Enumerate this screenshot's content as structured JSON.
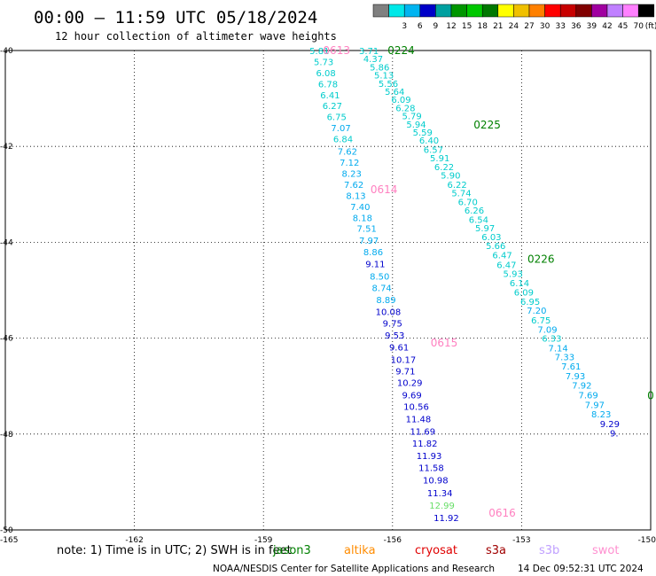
{
  "header": {
    "title": "00:00 – 11:59 UTC 05/18/2024",
    "subtitle": "12 hour collection of altimeter wave heights"
  },
  "color_scale": {
    "unit": "(ft)",
    "bins": [
      {
        "label": "",
        "color": "#808080"
      },
      {
        "label": "3",
        "color": "#00e8e8"
      },
      {
        "label": "6",
        "color": "#00b4f0"
      },
      {
        "label": "9",
        "color": "#0000c8"
      },
      {
        "label": "12",
        "color": "#00a0a0"
      },
      {
        "label": "15",
        "color": "#009600"
      },
      {
        "label": "18",
        "color": "#00c800"
      },
      {
        "label": "21",
        "color": "#007800"
      },
      {
        "label": "24",
        "color": "#ffff00"
      },
      {
        "label": "27",
        "color": "#f0c000"
      },
      {
        "label": "30",
        "color": "#ff8000"
      },
      {
        "label": "33",
        "color": "#ff0000"
      },
      {
        "label": "36",
        "color": "#c80000"
      },
      {
        "label": "39",
        "color": "#800000"
      },
      {
        "label": "42",
        "color": "#a000a0"
      },
      {
        "label": "45",
        "color": "#c080ff"
      },
      {
        "label": "70",
        "color": "#ff80ff"
      },
      {
        "label": "",
        "color": "#000000"
      }
    ]
  },
  "axes": {
    "lon_ticks": [
      "-165",
      "-162",
      "-159",
      "-156",
      "-153",
      "-150"
    ],
    "lat_ticks": [
      "-40",
      "-42",
      "-44",
      "-46",
      "-48",
      "-50"
    ],
    "lon_range": [
      -165,
      -150
    ],
    "lat_range": [
      -50,
      -40
    ],
    "grid": "dotted"
  },
  "passes": [
    {
      "label": "0224",
      "lon": -155.8,
      "lat": -40.0,
      "color": "#008000"
    },
    {
      "label": "0225",
      "lon": -153.8,
      "lat": -41.55,
      "color": "#008000"
    },
    {
      "label": "0226",
      "lon": -152.55,
      "lat": -44.35,
      "color": "#008000"
    },
    {
      "label": "0",
      "lon": -150.0,
      "lat": -47.2,
      "color": "#008000"
    },
    {
      "label": "0613",
      "lon": -157.3,
      "lat": -40.0,
      "color": "#ff80c0"
    },
    {
      "label": "0614",
      "lon": -156.2,
      "lat": -42.9,
      "color": "#ff80c0"
    },
    {
      "label": "0615",
      "lon": -154.8,
      "lat": -46.1,
      "color": "#ff80c0"
    },
    {
      "label": "0616",
      "lon": -153.45,
      "lat": -49.65,
      "color": "#ff80c0"
    }
  ],
  "measurements": [
    {
      "v": "5.81",
      "lon": -157.7,
      "lat": -40.0,
      "c": "#00cccc"
    },
    {
      "v": "5.73",
      "lon": -157.6,
      "lat": -40.23,
      "c": "#00cccc"
    },
    {
      "v": "6.08",
      "lon": -157.55,
      "lat": -40.46,
      "c": "#00cccc"
    },
    {
      "v": "6.78",
      "lon": -157.5,
      "lat": -40.69,
      "c": "#00cccc"
    },
    {
      "v": "6.41",
      "lon": -157.45,
      "lat": -40.92,
      "c": "#00cccc"
    },
    {
      "v": "6.27",
      "lon": -157.4,
      "lat": -41.15,
      "c": "#00cccc"
    },
    {
      "v": "6.75",
      "lon": -157.3,
      "lat": -41.38,
      "c": "#00cccc"
    },
    {
      "v": "7.07",
      "lon": -157.2,
      "lat": -41.61,
      "c": "#00aaee"
    },
    {
      "v": "6.84",
      "lon": -157.15,
      "lat": -41.84,
      "c": "#00cccc"
    },
    {
      "v": "7.62",
      "lon": -157.05,
      "lat": -42.1,
      "c": "#00aaee"
    },
    {
      "v": "7.12",
      "lon": -157.0,
      "lat": -42.33,
      "c": "#00aaee"
    },
    {
      "v": "8.23",
      "lon": -156.95,
      "lat": -42.56,
      "c": "#00aaee"
    },
    {
      "v": "7.62",
      "lon": -156.9,
      "lat": -42.79,
      "c": "#00aaee"
    },
    {
      "v": "8.13",
      "lon": -156.85,
      "lat": -43.02,
      "c": "#00aaee"
    },
    {
      "v": "7.40",
      "lon": -156.75,
      "lat": -43.25,
      "c": "#00aaee"
    },
    {
      "v": "8.18",
      "lon": -156.7,
      "lat": -43.48,
      "c": "#00aaee"
    },
    {
      "v": "7.51",
      "lon": -156.6,
      "lat": -43.71,
      "c": "#00aaee"
    },
    {
      "v": "7.97",
      "lon": -156.55,
      "lat": -43.96,
      "c": "#00aaee"
    },
    {
      "v": "8.86",
      "lon": -156.45,
      "lat": -44.2,
      "c": "#00aaee"
    },
    {
      "v": "9.11",
      "lon": -156.4,
      "lat": -44.45,
      "c": "#0000cc"
    },
    {
      "v": "8.50",
      "lon": -156.3,
      "lat": -44.7,
      "c": "#00aaee"
    },
    {
      "v": "8.74",
      "lon": -156.25,
      "lat": -44.94,
      "c": "#00aaee"
    },
    {
      "v": "8.89",
      "lon": -156.15,
      "lat": -45.19,
      "c": "#00aaee"
    },
    {
      "v": "10.08",
      "lon": -156.1,
      "lat": -45.44,
      "c": "#0000cc"
    },
    {
      "v": "9.75",
      "lon": -156.0,
      "lat": -45.68,
      "c": "#0000cc"
    },
    {
      "v": "9.53",
      "lon": -155.95,
      "lat": -45.93,
      "c": "#0000cc"
    },
    {
      "v": "9.61",
      "lon": -155.85,
      "lat": -46.18,
      "c": "#0000cc"
    },
    {
      "v": "10.17",
      "lon": -155.75,
      "lat": -46.44,
      "c": "#0000cc"
    },
    {
      "v": "9.71",
      "lon": -155.7,
      "lat": -46.68,
      "c": "#0000cc"
    },
    {
      "v": "10.29",
      "lon": -155.6,
      "lat": -46.92,
      "c": "#0000cc"
    },
    {
      "v": "9.69",
      "lon": -155.55,
      "lat": -47.18,
      "c": "#0000cc"
    },
    {
      "v": "10.56",
      "lon": -155.45,
      "lat": -47.42,
      "c": "#0000cc"
    },
    {
      "v": "11.48",
      "lon": -155.4,
      "lat": -47.68,
      "c": "#0000cc"
    },
    {
      "v": "11.69",
      "lon": -155.3,
      "lat": -47.94,
      "c": "#0000cc"
    },
    {
      "v": "11.82",
      "lon": -155.25,
      "lat": -48.19,
      "c": "#0000cc"
    },
    {
      "v": "11.93",
      "lon": -155.15,
      "lat": -48.45,
      "c": "#0000cc"
    },
    {
      "v": "11.58",
      "lon": -155.1,
      "lat": -48.7,
      "c": "#0000cc"
    },
    {
      "v": "10.98",
      "lon": -155.0,
      "lat": -48.96,
      "c": "#0000cc"
    },
    {
      "v": "11.34",
      "lon": -154.9,
      "lat": -49.22,
      "c": "#0000cc"
    },
    {
      "v": "12.99",
      "lon": -154.85,
      "lat": -49.48,
      "c": "#66dd66"
    },
    {
      "v": "11.92",
      "lon": -154.75,
      "lat": -49.74,
      "c": "#0000cc"
    },
    {
      "v": "3.71",
      "lon": -156.55,
      "lat": -40.0,
      "c": "#00cccc"
    },
    {
      "v": "4.37",
      "lon": -156.45,
      "lat": -40.17,
      "c": "#00cccc"
    },
    {
      "v": "5.86",
      "lon": -156.3,
      "lat": -40.34,
      "c": "#00cccc"
    },
    {
      "v": "5.13",
      "lon": -156.2,
      "lat": -40.51,
      "c": "#00cccc"
    },
    {
      "v": "5.56",
      "lon": -156.1,
      "lat": -40.68,
      "c": "#00cccc"
    },
    {
      "v": "5.64",
      "lon": -155.95,
      "lat": -40.85,
      "c": "#00cccc"
    },
    {
      "v": "6.09",
      "lon": -155.8,
      "lat": -41.02,
      "c": "#00cccc"
    },
    {
      "v": "6.28",
      "lon": -155.7,
      "lat": -41.19,
      "c": "#00cccc"
    },
    {
      "v": "5.79",
      "lon": -155.55,
      "lat": -41.36,
      "c": "#00cccc"
    },
    {
      "v": "5.94",
      "lon": -155.45,
      "lat": -41.53,
      "c": "#00cccc"
    },
    {
      "v": "5.59",
      "lon": -155.3,
      "lat": -41.7,
      "c": "#00cccc"
    },
    {
      "v": "6.40",
      "lon": -155.15,
      "lat": -41.87,
      "c": "#00cccc"
    },
    {
      "v": "6.57",
      "lon": -155.05,
      "lat": -42.06,
      "c": "#00cccc"
    },
    {
      "v": "5.91",
      "lon": -154.9,
      "lat": -42.24,
      "c": "#00cccc"
    },
    {
      "v": "6.22",
      "lon": -154.8,
      "lat": -42.42,
      "c": "#00cccc"
    },
    {
      "v": "5.90",
      "lon": -154.65,
      "lat": -42.6,
      "c": "#00cccc"
    },
    {
      "v": "6.22",
      "lon": -154.5,
      "lat": -42.79,
      "c": "#00cccc"
    },
    {
      "v": "5.74",
      "lon": -154.4,
      "lat": -42.97,
      "c": "#00cccc"
    },
    {
      "v": "6.70",
      "lon": -154.25,
      "lat": -43.15,
      "c": "#00cccc"
    },
    {
      "v": "6.26",
      "lon": -154.1,
      "lat": -43.33,
      "c": "#00cccc"
    },
    {
      "v": "6.54",
      "lon": -154.0,
      "lat": -43.52,
      "c": "#00cccc"
    },
    {
      "v": "5.97",
      "lon": -153.85,
      "lat": -43.7,
      "c": "#00cccc"
    },
    {
      "v": "6.03",
      "lon": -153.7,
      "lat": -43.88,
      "c": "#00cccc"
    },
    {
      "v": "5.66",
      "lon": -153.6,
      "lat": -44.07,
      "c": "#00cccc"
    },
    {
      "v": "6.47",
      "lon": -153.45,
      "lat": -44.26,
      "c": "#00cccc"
    },
    {
      "v": "6.47",
      "lon": -153.35,
      "lat": -44.46,
      "c": "#00cccc"
    },
    {
      "v": "5.93",
      "lon": -153.2,
      "lat": -44.65,
      "c": "#00cccc"
    },
    {
      "v": "6.14",
      "lon": -153.05,
      "lat": -44.84,
      "c": "#00cccc"
    },
    {
      "v": "6.09",
      "lon": -152.95,
      "lat": -45.04,
      "c": "#00cccc"
    },
    {
      "v": "6.95",
      "lon": -152.8,
      "lat": -45.23,
      "c": "#00cccc"
    },
    {
      "v": "7.20",
      "lon": -152.65,
      "lat": -45.42,
      "c": "#00aaee"
    },
    {
      "v": "6.75",
      "lon": -152.55,
      "lat": -45.62,
      "c": "#00cccc"
    },
    {
      "v": "7.09",
      "lon": -152.4,
      "lat": -45.81,
      "c": "#00aaee"
    },
    {
      "v": "6.33",
      "lon": -152.3,
      "lat": -46.0,
      "c": "#00cccc"
    },
    {
      "v": "7.14",
      "lon": -152.15,
      "lat": -46.2,
      "c": "#00aaee"
    },
    {
      "v": "7.33",
      "lon": -152.0,
      "lat": -46.39,
      "c": "#00aaee"
    },
    {
      "v": "7.61",
      "lon": -151.85,
      "lat": -46.58,
      "c": "#00aaee"
    },
    {
      "v": "7.93",
      "lon": -151.75,
      "lat": -46.78,
      "c": "#00aaee"
    },
    {
      "v": "7.92",
      "lon": -151.6,
      "lat": -46.98,
      "c": "#00aaee"
    },
    {
      "v": "7.69",
      "lon": -151.45,
      "lat": -47.18,
      "c": "#00aaee"
    },
    {
      "v": "7.97",
      "lon": -151.3,
      "lat": -47.38,
      "c": "#00aaee"
    },
    {
      "v": "8.23",
      "lon": -151.15,
      "lat": -47.58,
      "c": "#00aaee"
    },
    {
      "v": "9.29",
      "lon": -150.95,
      "lat": -47.78,
      "c": "#0000cc"
    },
    {
      "v": "9.",
      "lon": -150.85,
      "lat": -47.98,
      "c": "#0000cc"
    }
  ],
  "footer": {
    "note": "note:  1) Time is in UTC; 2) SWH is in feet",
    "legend": [
      {
        "name": "jason3",
        "color": "#008000"
      },
      {
        "name": "altika",
        "color": "#ff8c00"
      },
      {
        "name": "cryosat",
        "color": "#e00000"
      },
      {
        "name": "s3a",
        "color": "#a00000"
      },
      {
        "name": "s3b",
        "color": "#c0a0ff"
      },
      {
        "name": "swot",
        "color": "#ff90d0"
      }
    ],
    "credit": "NOAA/NESDIS Center for Satellite Applications and Research",
    "timestamp": "14 Dec 09:52:31 UTC 2024"
  }
}
